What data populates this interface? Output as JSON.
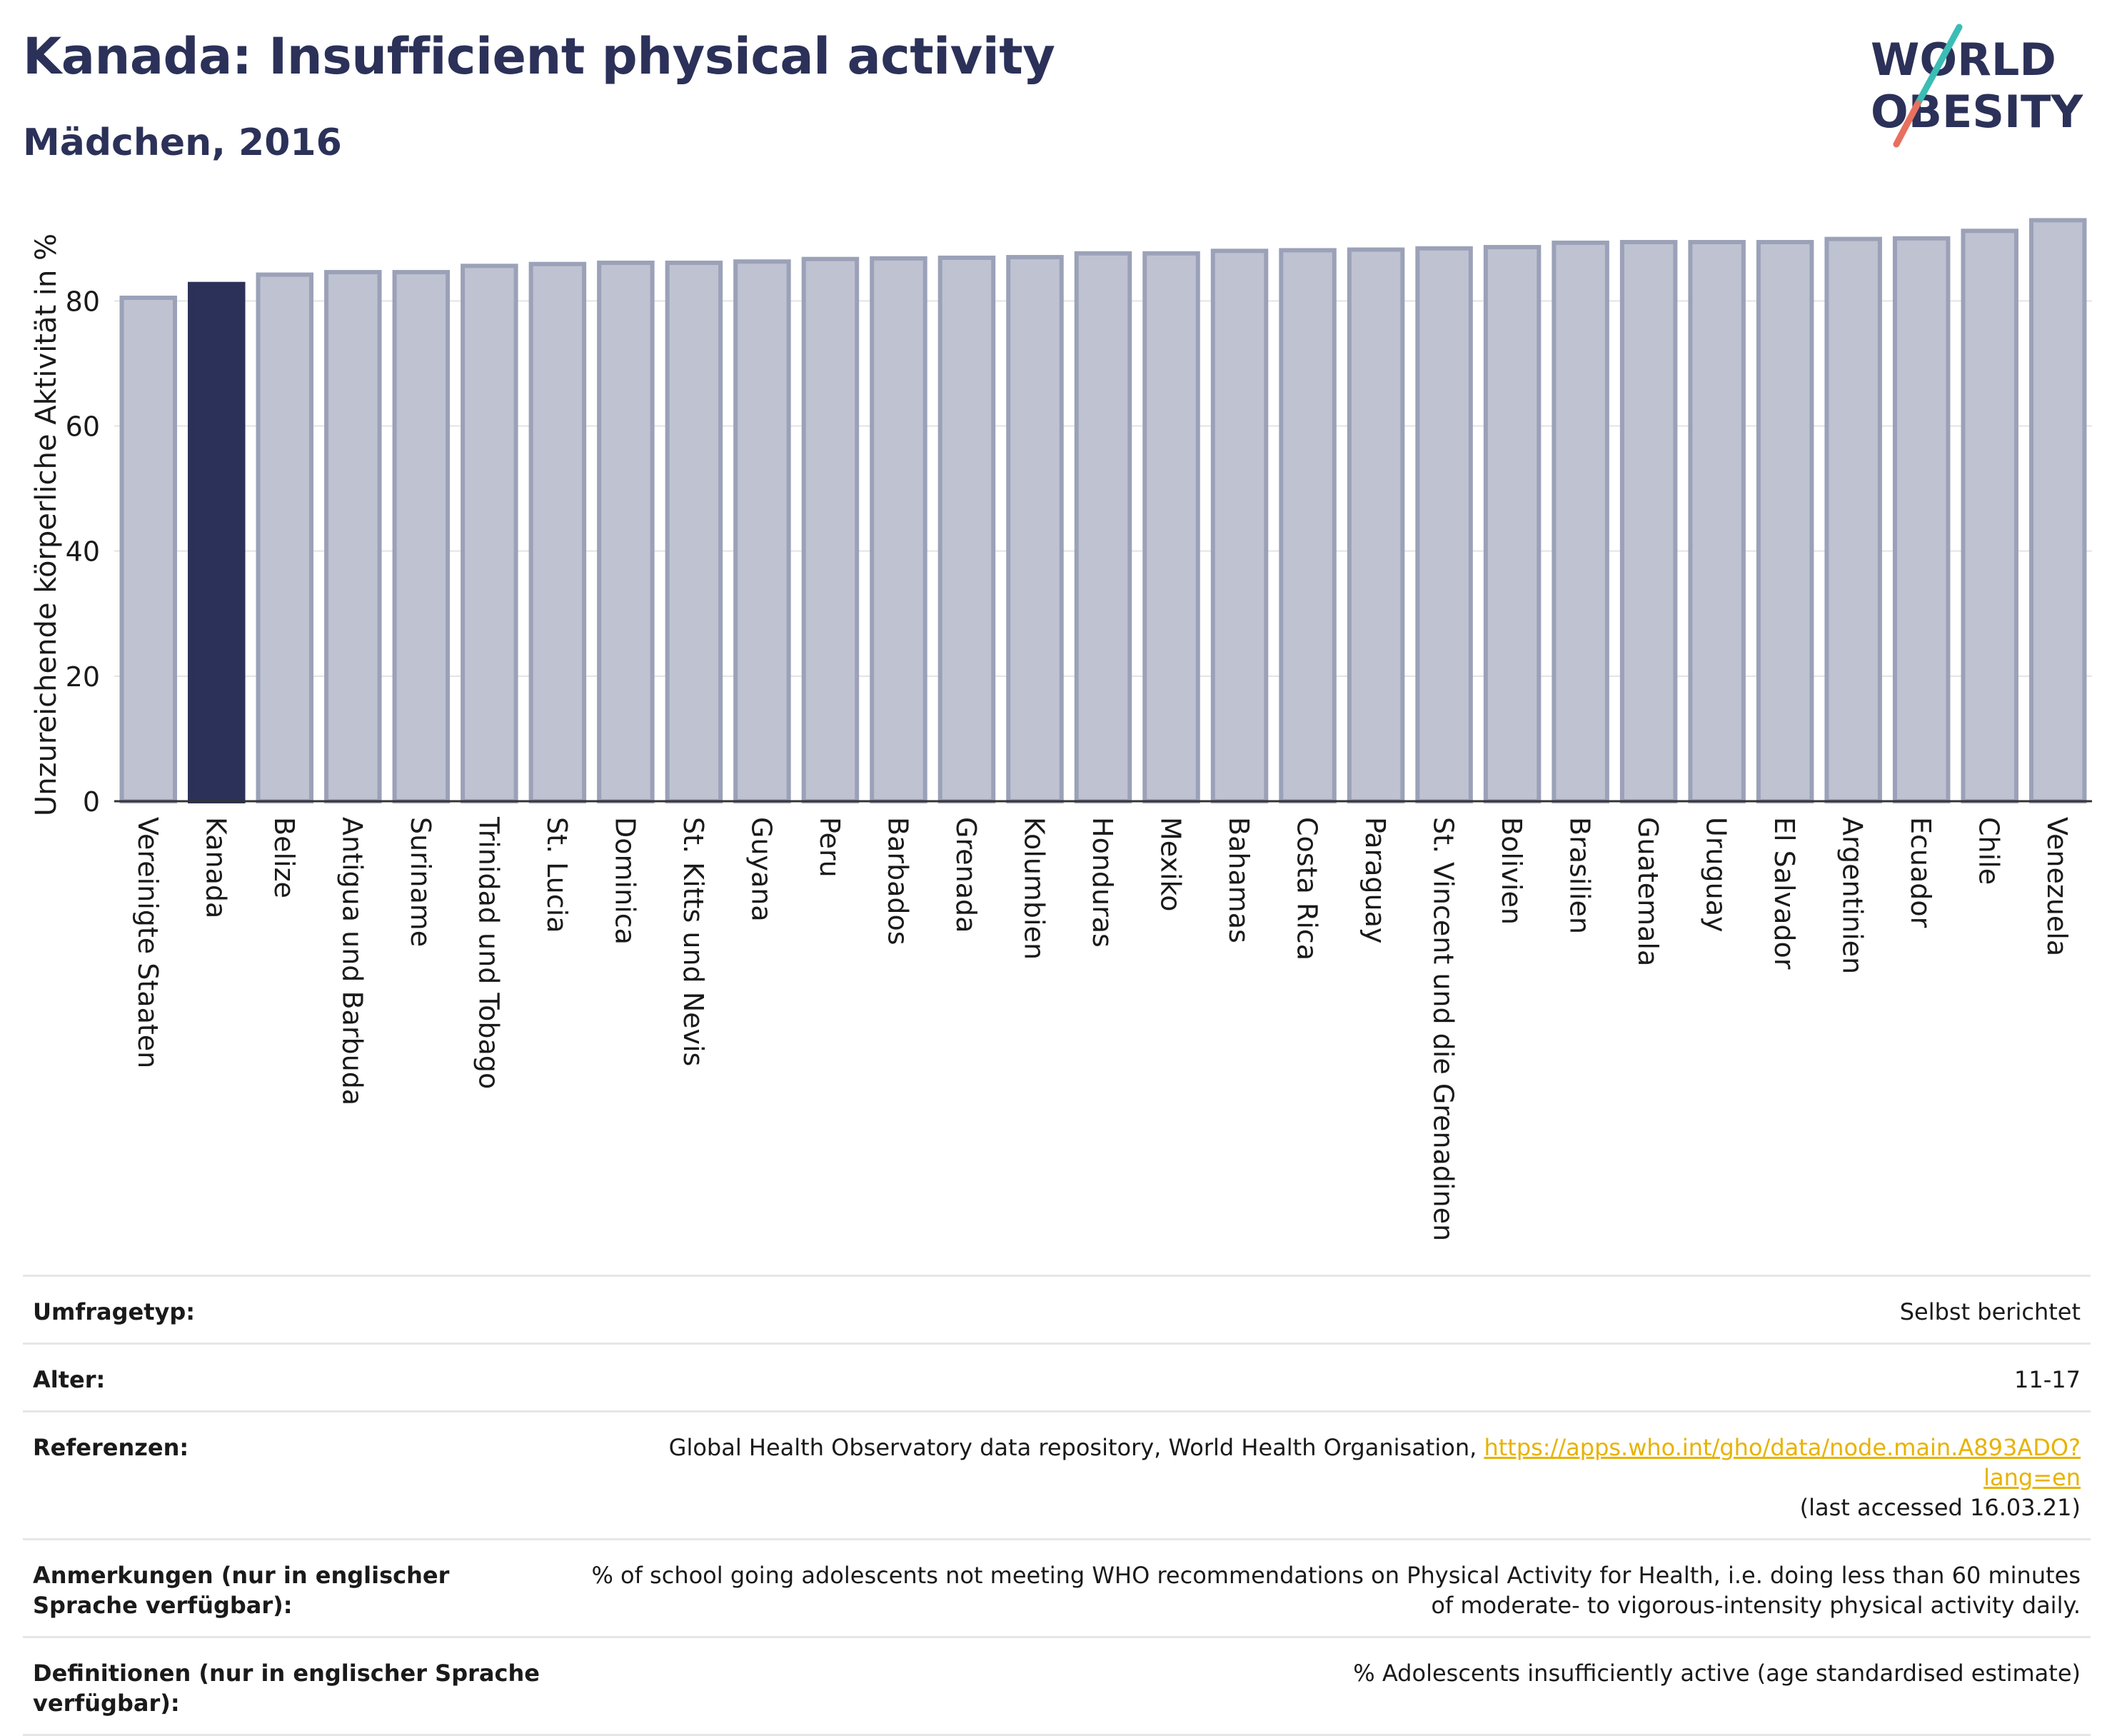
{
  "header": {
    "title": "Kanada: Insufficient physical activity",
    "subtitle": "Mädchen, 2016"
  },
  "logo": {
    "line1": "WORLD",
    "line2": "OBESITY"
  },
  "chart_data": {
    "type": "bar",
    "ylabel": "Unzureichende körperliche Aktivität in %",
    "xlabel": "",
    "ylim": [
      0,
      95
    ],
    "yticks": [
      0,
      20,
      40,
      60,
      80
    ],
    "grid": true,
    "highlight": "Kanada",
    "colors": {
      "highlight": "#2b3158",
      "bar": "#bfc2d0",
      "bar_edge": "#9ba1b8"
    },
    "categories": [
      "Vereinigte Staaten",
      "Kanada",
      "Belize",
      "Antigua und Barbuda",
      "Suriname",
      "Trinidad und Tobago",
      "St. Lucia",
      "Dominica",
      "St. Kitts und Nevis",
      "Guyana",
      "Peru",
      "Barbados",
      "Grenada",
      "Kolumbien",
      "Honduras",
      "Mexiko",
      "Bahamas",
      "Costa Rica",
      "Paraguay",
      "St. Vincent und die Grenadinen",
      "Bolivien",
      "Brasilien",
      "Guatemala",
      "Uruguay",
      "El Salvador",
      "Argentinien",
      "Ecuador",
      "Chile",
      "Venezuela"
    ],
    "values": [
      80.5,
      82.7,
      84.2,
      84.6,
      84.6,
      85.6,
      85.9,
      86.1,
      86.1,
      86.3,
      86.7,
      86.8,
      86.9,
      87.0,
      87.6,
      87.6,
      88.0,
      88.1,
      88.2,
      88.4,
      88.6,
      89.3,
      89.4,
      89.4,
      89.4,
      89.9,
      90.0,
      91.2,
      92.9
    ]
  },
  "table": [
    {
      "label": "Umfragetyp:",
      "value": "Selbst berichtet"
    },
    {
      "label": "Alter:",
      "value": "11-17"
    },
    {
      "label": "Referenzen:",
      "value": "Global Health Observatory data repository, World Health Organisation, ",
      "link": "https://apps.who.int/gho/data/node.main.A893ADO?lang=en",
      "value2": "(last accessed 16.03.21)"
    },
    {
      "label": "Anmerkungen (nur in englischer Sprache verfügbar):",
      "value": "% of school going adolescents not meeting WHO recommendations on Physical Activity for Health, i.e. doing less than 60 minutes of moderate- to vigorous-intensity physical activity daily."
    },
    {
      "label": "Definitionen (nur in englischer Sprache verfügbar):",
      "value": "% Adolescents insufficiently active (age standardised estimate)"
    }
  ]
}
